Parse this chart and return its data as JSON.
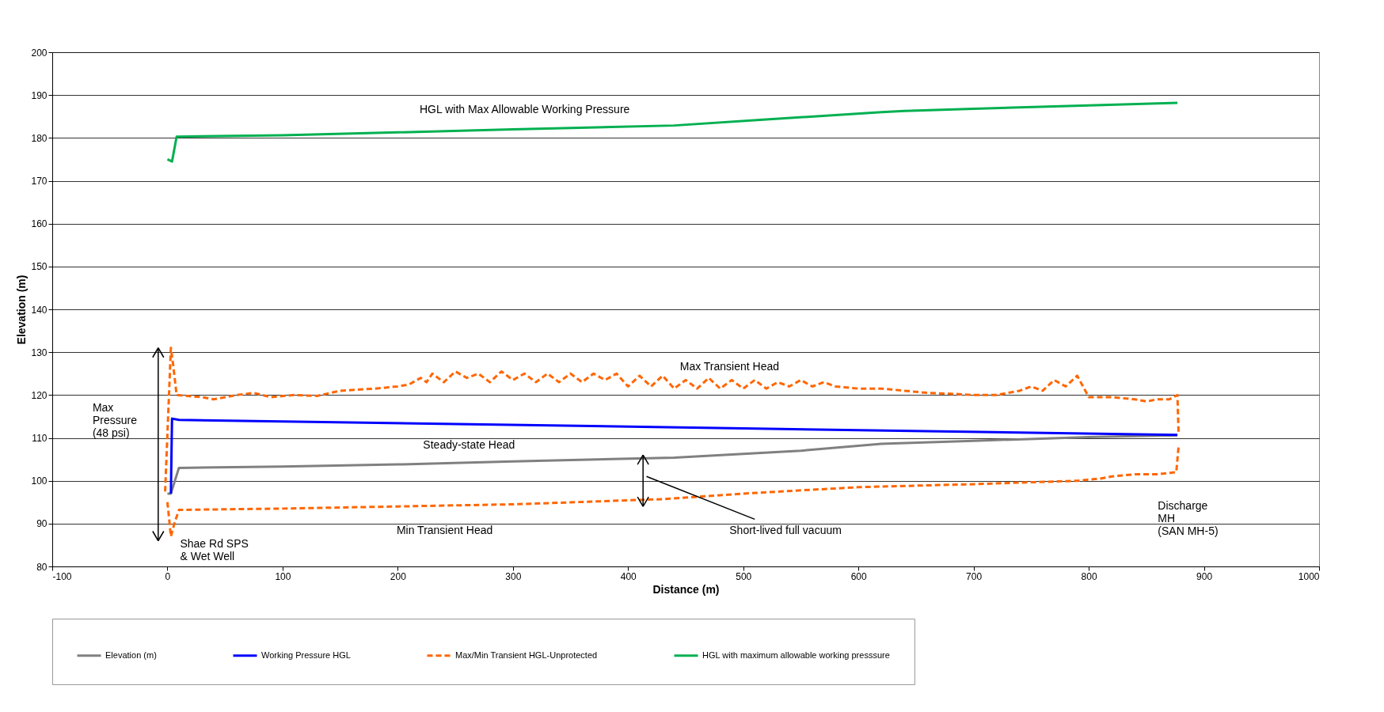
{
  "chart_data": {
    "type": "line",
    "xlabel": "Distance (m)",
    "ylabel": "Elevation (m)",
    "xlim": [
      -100,
      1000
    ],
    "xticks": [
      -100,
      0,
      100,
      200,
      300,
      400,
      500,
      600,
      700,
      800,
      900,
      1000
    ],
    "ylim": [
      80,
      200
    ],
    "yticks": [
      80,
      90,
      100,
      110,
      120,
      130,
      140,
      150,
      160,
      170,
      180,
      190,
      200
    ],
    "grid": "y",
    "legend": "bottom",
    "series": [
      {
        "name": "Elevation (m)",
        "color": "#808080",
        "line_style": "solid",
        "x": [
          0,
          3,
          10,
          100,
          200,
          300,
          440,
          550,
          620,
          700,
          800,
          877
        ],
        "values": [
          97,
          97,
          103,
          103.3,
          103.8,
          104.5,
          105.4,
          107,
          108.6,
          109.3,
          110.2,
          110.6
        ]
      },
      {
        "name": "Working Pressure HGL",
        "color": "#0000ff",
        "line_style": "solid",
        "x": [
          3,
          4,
          10,
          877
        ],
        "values": [
          97,
          114.5,
          114.2,
          110.7
        ]
      },
      {
        "name": "Max/Min Transient HGL-Unprotected",
        "color": "#ff6600",
        "line_style": "dashed",
        "x": [
          -2,
          3,
          5,
          8,
          30,
          40,
          60,
          75,
          90,
          110,
          130,
          150,
          180,
          200,
          210,
          220,
          225,
          230,
          240,
          250,
          260,
          270,
          280,
          290,
          300,
          310,
          320,
          330,
          340,
          350,
          360,
          370,
          380,
          390,
          400,
          410,
          420,
          430,
          440,
          450,
          460,
          470,
          480,
          490,
          500,
          510,
          520,
          530,
          540,
          550,
          560,
          570,
          580,
          600,
          620,
          640,
          660,
          680,
          700,
          720,
          740,
          750,
          760,
          770,
          780,
          790,
          800,
          820,
          840,
          850,
          860,
          870,
          877,
          878
        ],
        "values": [
          97.5,
          131,
          127,
          120,
          119.5,
          119,
          120,
          120.5,
          119.5,
          120,
          119.8,
          121,
          121.5,
          122,
          122.5,
          124,
          123,
          125,
          123,
          125.5,
          124,
          125,
          123,
          125.5,
          123.5,
          125,
          123,
          125,
          123,
          125,
          123,
          125,
          123.5,
          125,
          122,
          124.5,
          122,
          124.5,
          121.5,
          123.5,
          121.5,
          124,
          121.5,
          123.5,
          121.5,
          123.5,
          121.5,
          123,
          122,
          123.5,
          122,
          123,
          122,
          121.5,
          121.5,
          121,
          120.5,
          120.3,
          120,
          120,
          121,
          122,
          121,
          123.5,
          122,
          124.5,
          119.5,
          119.5,
          119,
          118.5,
          119,
          119,
          120,
          111
        ]
      },
      {
        "color": "#ff6600",
        "line_style": "dashed",
        "x": [
          0,
          3,
          6,
          10,
          100,
          200,
          300,
          430,
          500,
          600,
          700,
          790,
          810,
          820,
          840,
          860,
          876,
          878
        ],
        "values": [
          95,
          87,
          90,
          93.2,
          93.5,
          94,
          94.5,
          95.7,
          97,
          98.5,
          99.2,
          100,
          100.5,
          101,
          101.5,
          101.5,
          102,
          108
        ]
      },
      {
        "name": "HGL with maximum allowable working presssure",
        "color": "#00b050",
        "line_style": "solid",
        "x": [
          0,
          4,
          8,
          100,
          200,
          300,
          440,
          520,
          620,
          640,
          700,
          800,
          877
        ],
        "values": [
          175,
          174.5,
          180.3,
          180.6,
          181.3,
          182,
          182.9,
          184.3,
          186,
          186.3,
          186.8,
          187.6,
          188.2
        ]
      }
    ],
    "annotations": [
      "HGL with Max Allowable Working Pressure",
      "Max Transient Head",
      "Steady-state Head",
      "Min Transient Head",
      "Max\nPressure\n(48 psi)",
      "Shae Rd SPS\n& Wet Well",
      "Short-lived full vacuum",
      "Discharge\nMH\n(SAN MH-5)"
    ]
  }
}
